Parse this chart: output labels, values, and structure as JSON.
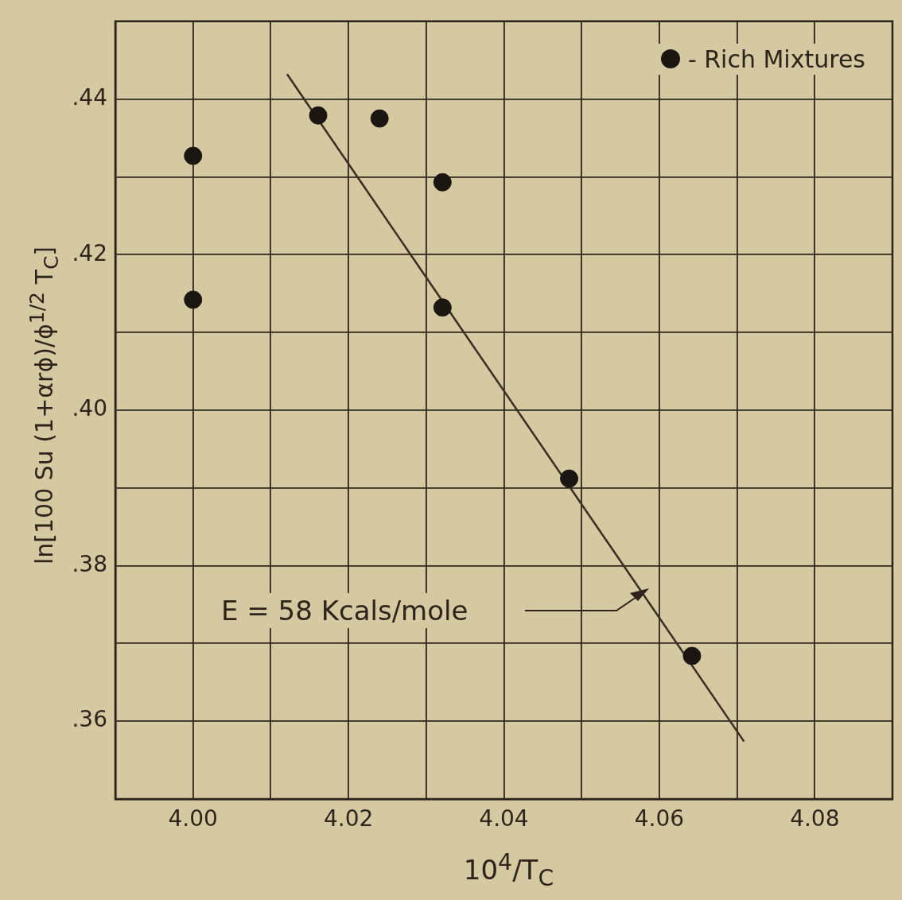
{
  "chart_data": {
    "type": "scatter",
    "xlabel": "10$^{4}$/T$_{C}$",
    "ylabel": "ln[100 Su (1+αrϕ)/ϕ$^{1/2}$ T$_{C}$]",
    "series": [
      {
        "name": "- Rich Mixtures",
        "color": "#1c1612",
        "x": [
          4.0,
          4.0,
          4.0161,
          4.024,
          4.0321,
          4.0321,
          4.0484,
          4.0642
        ],
        "values": [
          0.4327,
          0.4142,
          0.4379,
          0.4375,
          0.4293,
          0.4132,
          0.3912,
          0.3684
        ]
      },
      {
        "type": "line",
        "color": "#3a2e22",
        "marker": "none",
        "x": [
          4.0121,
          4.0709
        ],
        "values": [
          0.4432,
          0.3574
        ]
      }
    ],
    "annotations": [
      "E = 58 Kcals/mole"
    ],
    "xlim": [
      3.99,
      4.09
    ],
    "ylim": [
      0.35,
      0.45
    ],
    "xticks": [
      {
        "value": 4.0,
        "label": "4.00"
      },
      {
        "value": 4.01,
        "label": null
      },
      {
        "value": 4.02,
        "label": "4.02"
      },
      {
        "value": 4.03,
        "label": null
      },
      {
        "value": 4.04,
        "label": "4.04"
      },
      {
        "value": 4.05,
        "label": null
      },
      {
        "value": 4.06,
        "label": "4.06"
      },
      {
        "value": 4.07,
        "label": null
      },
      {
        "value": 4.08,
        "label": "4.08"
      }
    ],
    "yticks": [
      {
        "value": 0.36,
        "label": ".36"
      },
      {
        "value": 0.37,
        "label": null
      },
      {
        "value": 0.38,
        "label": ".38"
      },
      {
        "value": 0.39,
        "label": null
      },
      {
        "value": 0.4,
        "label": ".40"
      },
      {
        "value": 0.41,
        "label": null
      },
      {
        "value": 0.42,
        "label": ".42"
      },
      {
        "value": 0.43,
        "label": null
      },
      {
        "value": 0.44,
        "label": ".44"
      }
    ],
    "grid": true,
    "legend": "top right",
    "marker": "circle"
  }
}
